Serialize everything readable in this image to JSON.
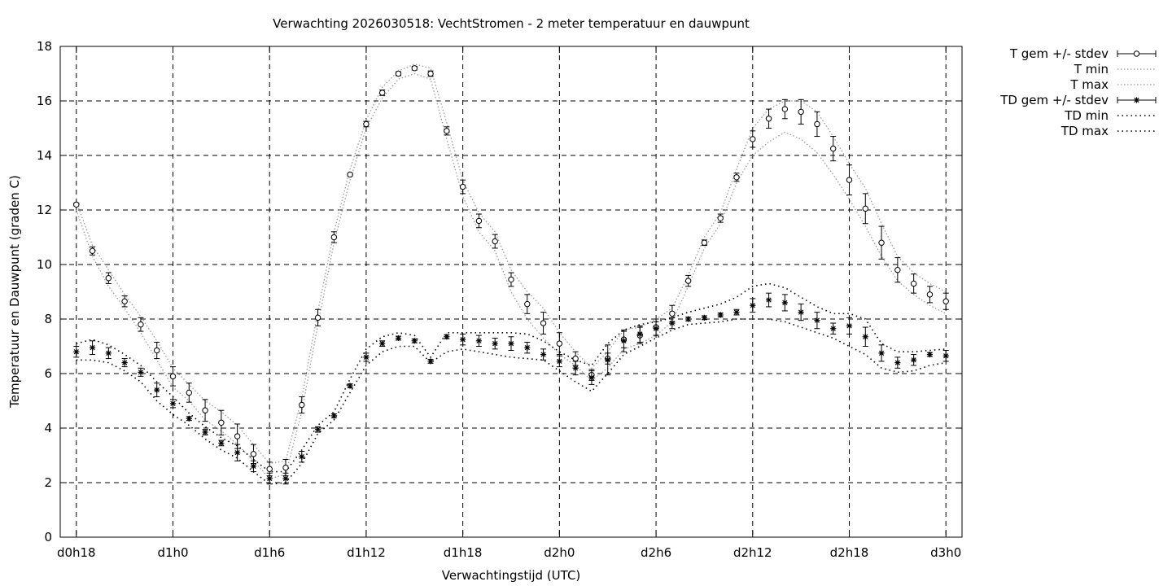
{
  "chart_data": {
    "type": "line",
    "title": "Verwachting 2026030518: VechtStromen - 2 meter temperatuur en dauwpunt",
    "xlabel": "Verwachtingstijd (UTC)",
    "ylabel": "Temperatuur en Dauwpunt (graden C)",
    "xlim": [
      -1,
      55
    ],
    "ylim": [
      0,
      18
    ],
    "yticks": [
      0,
      2,
      4,
      6,
      8,
      10,
      12,
      14,
      16,
      18
    ],
    "xticks": [
      {
        "x": 0,
        "label": "d0h18"
      },
      {
        "x": 6,
        "label": "d1h0"
      },
      {
        "x": 12,
        "label": "d1h6"
      },
      {
        "x": 18,
        "label": "d1h12"
      },
      {
        "x": 24,
        "label": "d1h18"
      },
      {
        "x": 30,
        "label": "d2h0"
      },
      {
        "x": 36,
        "label": "d2h6"
      },
      {
        "x": 42,
        "label": "d2h12"
      },
      {
        "x": 48,
        "label": "d2h18"
      },
      {
        "x": 54,
        "label": "d3h0"
      }
    ],
    "grid": true,
    "legend_position": "top-right",
    "x": [
      0,
      1,
      2,
      3,
      4,
      5,
      6,
      7,
      8,
      9,
      10,
      11,
      12,
      13,
      14,
      15,
      16,
      17,
      18,
      19,
      20,
      21,
      22,
      23,
      24,
      25,
      26,
      27,
      28,
      29,
      30,
      31,
      32,
      33,
      34,
      35,
      36,
      37,
      38,
      39,
      40,
      41,
      42,
      43,
      44,
      45,
      46,
      47,
      48,
      49,
      50,
      51,
      52,
      53,
      54
    ],
    "series": [
      {
        "name": "T gem +/- stdev",
        "marker": "circle",
        "values": [
          12.2,
          10.5,
          9.5,
          8.65,
          7.8,
          6.85,
          5.9,
          5.3,
          4.65,
          4.2,
          3.7,
          3.05,
          2.5,
          2.55,
          4.85,
          8.05,
          11.0,
          13.3,
          15.15,
          16.3,
          17.0,
          17.2,
          17.0,
          14.9,
          12.85,
          11.6,
          10.85,
          9.45,
          8.55,
          7.85,
          7.1,
          6.55,
          5.95,
          6.55,
          7.25,
          7.4,
          7.7,
          8.2,
          9.4,
          10.8,
          11.7,
          13.2,
          14.6,
          15.35,
          15.7,
          15.6,
          15.15,
          14.25,
          13.1,
          12.05,
          10.8,
          9.8,
          9.3,
          8.9,
          8.65
        ],
        "stdev": [
          0.05,
          0.15,
          0.2,
          0.2,
          0.25,
          0.3,
          0.35,
          0.35,
          0.4,
          0.45,
          0.45,
          0.35,
          0.25,
          0.3,
          0.3,
          0.3,
          0.2,
          0.05,
          0.1,
          0.1,
          0.07,
          0.07,
          0.1,
          0.15,
          0.25,
          0.25,
          0.25,
          0.25,
          0.35,
          0.4,
          0.4,
          0.25,
          0.2,
          0.2,
          0.3,
          0.3,
          0.3,
          0.3,
          0.2,
          0.1,
          0.15,
          0.15,
          0.3,
          0.35,
          0.35,
          0.45,
          0.45,
          0.45,
          0.55,
          0.55,
          0.6,
          0.45,
          0.35,
          0.3,
          0.3
        ]
      },
      {
        "name": "T min",
        "values": [
          12.0,
          10.3,
          9.2,
          8.4,
          7.5,
          6.5,
          5.5,
          5.0,
          4.3,
          3.9,
          3.4,
          2.8,
          2.15,
          2.3,
          4.6,
          7.8,
          10.8,
          13.1,
          15.0,
          16.1,
          16.8,
          17.0,
          16.8,
          14.6,
          12.5,
          11.2,
          10.5,
          9.0,
          8.0,
          7.3,
          6.7,
          6.3,
          5.75,
          6.2,
          6.9,
          7.1,
          7.4,
          7.9,
          9.2,
          10.6,
          11.5,
          13.0,
          14.0,
          14.5,
          14.85,
          14.6,
          14.1,
          13.3,
          12.4,
          11.4,
          10.3,
          9.4,
          8.9,
          8.5,
          8.2
        ]
      },
      {
        "name": "T max",
        "values": [
          12.3,
          10.7,
          9.8,
          8.9,
          8.1,
          7.2,
          6.2,
          5.6,
          5.0,
          4.6,
          4.1,
          3.4,
          2.7,
          2.8,
          5.1,
          8.3,
          11.2,
          13.5,
          15.3,
          16.5,
          17.1,
          17.35,
          17.2,
          15.2,
          13.1,
          11.9,
          11.2,
          9.8,
          9.0,
          8.4,
          7.5,
          6.8,
          6.2,
          6.8,
          7.6,
          7.7,
          8.0,
          8.4,
          9.6,
          11.0,
          11.9,
          13.5,
          15.0,
          15.7,
          16.0,
          16.0,
          15.6,
          14.7,
          13.7,
          12.8,
          11.5,
          10.3,
          9.7,
          9.3,
          9.0
        ]
      },
      {
        "name": "TD gem +/- stdev",
        "marker": "star",
        "values": [
          6.8,
          6.95,
          6.75,
          6.4,
          6.05,
          5.4,
          4.9,
          4.35,
          3.85,
          3.45,
          3.1,
          2.6,
          2.15,
          2.15,
          2.95,
          3.95,
          4.45,
          5.55,
          6.6,
          7.1,
          7.3,
          7.2,
          6.45,
          7.35,
          7.25,
          7.2,
          7.1,
          7.1,
          6.95,
          6.7,
          6.45,
          6.2,
          5.85,
          6.5,
          7.2,
          7.45,
          7.65,
          7.85,
          8.0,
          8.05,
          8.15,
          8.25,
          8.5,
          8.7,
          8.6,
          8.25,
          7.95,
          7.65,
          7.75,
          7.35,
          6.75,
          6.4,
          6.5,
          6.7,
          6.65
        ],
        "stdev": [
          0.2,
          0.25,
          0.2,
          0.15,
          0.15,
          0.25,
          0.15,
          0.07,
          0.1,
          0.1,
          0.3,
          0.2,
          0.2,
          0.2,
          0.2,
          0.1,
          0.07,
          0.07,
          0.15,
          0.1,
          0.07,
          0.07,
          0.07,
          0.07,
          0.2,
          0.2,
          0.2,
          0.25,
          0.2,
          0.2,
          0.2,
          0.25,
          0.25,
          0.55,
          0.4,
          0.3,
          0.25,
          0.2,
          0.07,
          0.07,
          0.07,
          0.1,
          0.25,
          0.25,
          0.3,
          0.3,
          0.3,
          0.2,
          0.3,
          0.35,
          0.3,
          0.2,
          0.2,
          0.07,
          0.2
        ]
      },
      {
        "name": "TD min",
        "values": [
          6.5,
          6.5,
          6.4,
          6.1,
          5.7,
          5.0,
          4.5,
          4.1,
          3.6,
          3.2,
          2.9,
          2.4,
          1.95,
          2.0,
          2.7,
          3.8,
          4.3,
          5.3,
          6.3,
          6.8,
          7.0,
          7.0,
          6.4,
          6.8,
          6.9,
          6.8,
          6.7,
          6.6,
          6.55,
          6.5,
          6.1,
          5.7,
          5.35,
          6.0,
          6.7,
          7.0,
          7.3,
          7.6,
          7.8,
          7.85,
          7.9,
          8.0,
          8.0,
          8.0,
          7.9,
          7.7,
          7.5,
          7.3,
          7.0,
          6.7,
          6.2,
          6.05,
          6.1,
          6.3,
          6.4
        ]
      },
      {
        "name": "TD max",
        "values": [
          7.1,
          7.25,
          7.05,
          6.7,
          6.3,
          5.7,
          5.15,
          4.55,
          4.05,
          3.65,
          3.35,
          2.85,
          2.4,
          2.4,
          3.2,
          4.1,
          4.6,
          5.8,
          6.9,
          7.35,
          7.5,
          7.4,
          6.6,
          7.5,
          7.5,
          7.5,
          7.5,
          7.5,
          7.45,
          7.2,
          6.8,
          6.5,
          6.3,
          7.1,
          7.6,
          7.8,
          7.9,
          8.05,
          8.25,
          8.4,
          8.55,
          8.8,
          9.2,
          9.3,
          9.15,
          8.8,
          8.45,
          8.2,
          8.2,
          8.0,
          7.1,
          6.8,
          6.8,
          6.85,
          6.9
        ]
      }
    ]
  }
}
